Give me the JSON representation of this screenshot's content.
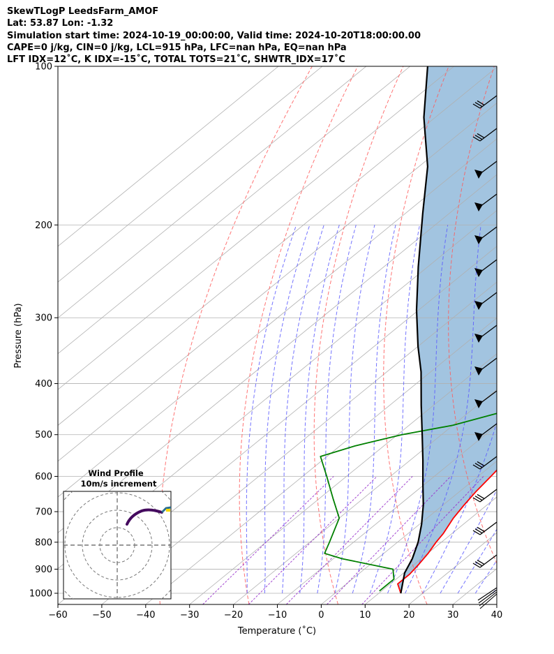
{
  "header": {
    "line1": "SkewTLogP LeedsFarm_AMOF",
    "line2": "Lat: 53.87   Lon: -1.32",
    "line3": "Simulation start time: 2024-10-19_00:00:00, Valid time: 2024-10-20T18:00:00.00",
    "line4": "CAPE=0 j/kg, CIN=0 j/kg, LCL=915 hPa, LFC=nan hPa, EQ=nan hPa",
    "line5": "LFT IDX=12˚C, K IDX=-15˚C, TOTAL TOTS=21˚C, SHWTR_IDX=17˚C"
  },
  "chart_data": {
    "type": "line",
    "title": "SkewTLogP LeedsFarm_AMOF",
    "xlabel": "Temperature (˚C)",
    "ylabel": "Pressure (hPa)",
    "xlim": [
      -60,
      40
    ],
    "ylim": [
      1050,
      100
    ],
    "y_scale": "log",
    "x_ticks": [
      -60,
      -50,
      -40,
      -30,
      -20,
      -10,
      0,
      10,
      20,
      30,
      40
    ],
    "y_ticks": [
      100,
      200,
      300,
      400,
      500,
      600,
      700,
      800,
      900,
      1000
    ],
    "grid": true,
    "series": [
      {
        "id": "temperature",
        "color": "#ff0000",
        "points": [
          [
            15.0,
            1000
          ],
          [
            11.7,
            960
          ],
          [
            11.7,
            920
          ],
          [
            11.0,
            880
          ],
          [
            10.1,
            840
          ],
          [
            8.8,
            800
          ],
          [
            8.0,
            770
          ],
          [
            6.0,
            720
          ],
          [
            4.8,
            680
          ],
          [
            3.7,
            640
          ],
          [
            2.9,
            600
          ],
          [
            1.9,
            560
          ],
          [
            0.5,
            520
          ],
          [
            -1.1,
            480
          ],
          [
            -3.4,
            440
          ],
          [
            -5.8,
            400
          ],
          [
            -8.8,
            360
          ],
          [
            -12.6,
            320
          ],
          [
            -17.6,
            280
          ],
          [
            -21.9,
            250
          ],
          [
            -26.5,
            230
          ],
          [
            -29.8,
            215
          ],
          [
            -32.5,
            200
          ],
          [
            -36.6,
            185
          ],
          [
            -41.0,
            170
          ],
          [
            -45.8,
            155
          ],
          [
            -51.7,
            140
          ],
          [
            -57.4,
            125
          ],
          [
            -62.2,
            115
          ],
          [
            -67.0,
            105
          ],
          [
            -70.0,
            100
          ]
        ]
      },
      {
        "id": "dewpoint",
        "color": "#008000",
        "points": [
          [
            9.5,
            990
          ],
          [
            9.5,
            960
          ],
          [
            9.5,
            940
          ],
          [
            6.5,
            900
          ],
          [
            -8.0,
            860
          ],
          [
            -13.5,
            840
          ],
          [
            -15.5,
            800
          ],
          [
            -20.0,
            720
          ],
          [
            -27.0,
            660
          ],
          [
            -34.5,
            600
          ],
          [
            -41.5,
            550
          ],
          [
            -36.5,
            525
          ],
          [
            -29.0,
            500
          ],
          [
            -20.0,
            480
          ],
          [
            -11.7,
            450
          ],
          [
            -7.0,
            420
          ],
          [
            -6.5,
            380
          ],
          [
            -8.7,
            340
          ],
          [
            -12.5,
            310
          ],
          [
            -20.0,
            270
          ],
          [
            -26.5,
            240
          ],
          [
            -31.0,
            220
          ],
          [
            -34.0,
            200
          ],
          [
            -36.5,
            190
          ],
          [
            -39.0,
            180
          ],
          [
            -43.5,
            170
          ],
          [
            -52.0,
            155
          ],
          [
            -57.5,
            145
          ],
          [
            -60.0,
            135
          ],
          [
            -64.0,
            120
          ],
          [
            -70.0,
            100
          ]
        ]
      },
      {
        "id": "parcel",
        "color": "#000000",
        "points": [
          [
            15.0,
            1000
          ],
          [
            10.2,
            915
          ],
          [
            8.0,
            860
          ],
          [
            4.7,
            800
          ],
          [
            0.5,
            740
          ],
          [
            -4.5,
            680
          ],
          [
            -10.5,
            620
          ],
          [
            -17.0,
            560
          ],
          [
            -24.4,
            500
          ],
          [
            -32.8,
            440
          ],
          [
            -42.2,
            380
          ],
          [
            -50.0,
            340
          ],
          [
            -60.5,
            290
          ],
          [
            -72.2,
            240
          ],
          [
            -86.1,
            190
          ],
          [
            -98.0,
            155
          ],
          [
            -112.6,
            125
          ],
          [
            -126.0,
            100
          ]
        ]
      }
    ],
    "stable_area_fill": "#a2c4e0",
    "wind_profile_inset": {
      "title": "Wind Profile",
      "subtitle": "10m/s increment"
    }
  }
}
